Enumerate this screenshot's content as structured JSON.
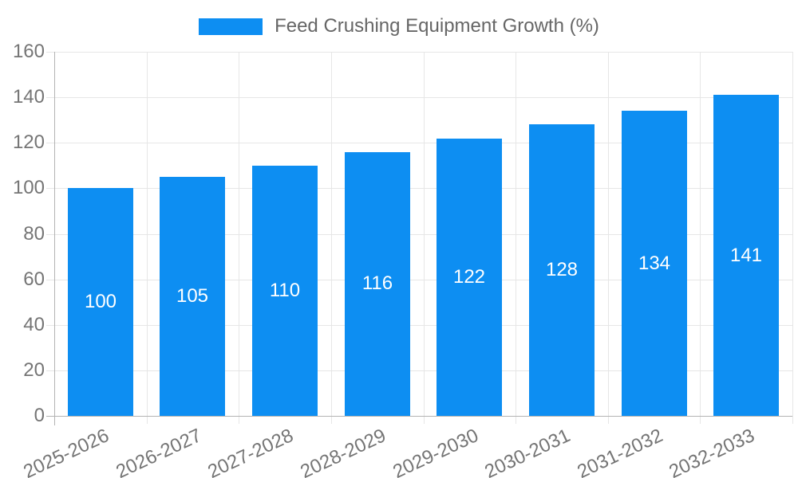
{
  "legend": {
    "label": "Feed Crushing Equipment Growth (%)"
  },
  "chart_data": {
    "type": "bar",
    "title": "Feed Crushing Equipment Growth (%)",
    "categories": [
      "2025-2026",
      "2026-2027",
      "2027-2028",
      "2028-2029",
      "2029-2030",
      "2030-2031",
      "2031-2032",
      "2032-2033"
    ],
    "values": [
      100,
      105,
      110,
      116,
      122,
      128,
      134,
      141
    ],
    "xlabel": "",
    "ylabel": "",
    "ylim": [
      0,
      160
    ],
    "ytick_step": 20,
    "yticks": [
      0,
      20,
      40,
      60,
      80,
      100,
      120,
      140,
      160
    ],
    "grid": true,
    "legend_position": "top",
    "value_labels_inside_bars": true,
    "x_label_rotation_deg": -25,
    "colors": {
      "bar": "#0d8ef2",
      "grid": "#e6e6e6",
      "axis_line": "#b3b3b3",
      "tick_text": "#757575",
      "legend_text": "#666666",
      "value_label_text": "#ffffff",
      "background": "#ffffff"
    }
  }
}
